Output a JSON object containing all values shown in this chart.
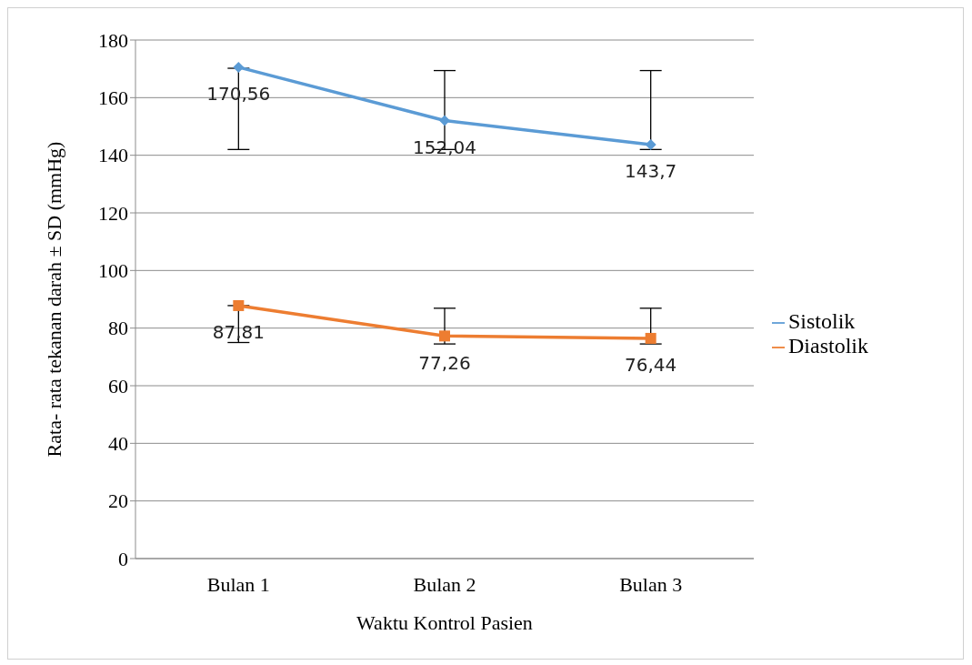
{
  "chart_data": {
    "type": "line",
    "xlabel": "Waktu Kontrol Pasien",
    "ylabel": "Rata- rata tekanan darah ± SD (mmHg)",
    "categories": [
      "Bulan 1",
      "Bulan 2",
      "Bulan 3"
    ],
    "series": [
      {
        "name": "Sistolik",
        "color": "#5b9bd5",
        "marker": "diamond",
        "values": [
          170.56,
          152.04,
          143.7
        ],
        "value_labels": [
          "170,56",
          "152,04",
          "143,7"
        ],
        "errors": [
          [
            142,
            170.2
          ],
          [
            142,
            169.4
          ],
          [
            142,
            169.4
          ]
        ]
      },
      {
        "name": "Diastolik",
        "color": "#ed7d31",
        "marker": "square",
        "values": [
          87.81,
          77.26,
          76.44
        ],
        "value_labels": [
          "87,81",
          "77,26",
          "76,44"
        ],
        "errors": [
          [
            75,
            87.81
          ],
          [
            74.5,
            86.9
          ],
          [
            74.5,
            86.9
          ]
        ]
      }
    ],
    "ylim": [
      0,
      180
    ],
    "yticks": [
      0,
      20,
      40,
      60,
      80,
      100,
      120,
      140,
      160,
      180
    ],
    "grid": "y",
    "legend": "right",
    "line_style": "solid"
  }
}
